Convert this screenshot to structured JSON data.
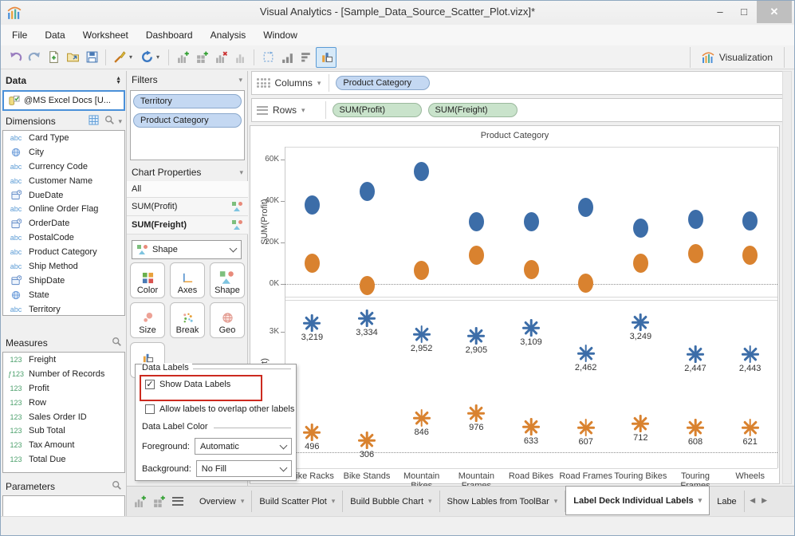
{
  "window": {
    "title": "Visual Analytics - [Sample_Data_Source_Scatter_Plot.vizx]*"
  },
  "menu": {
    "items": [
      "File",
      "Data",
      "Worksheet",
      "Dashboard",
      "Analysis",
      "Window"
    ]
  },
  "toolbar": {
    "visualization_label": "Visualization"
  },
  "data_panel": {
    "title": "Data",
    "source": "@MS Excel Docs [U...",
    "dimensions": {
      "title": "Dimensions",
      "items": [
        {
          "type": "abc",
          "label": "Card Type"
        },
        {
          "type": "globe",
          "label": "City"
        },
        {
          "type": "abc",
          "label": "Currency Code"
        },
        {
          "type": "abc",
          "label": "Customer Name"
        },
        {
          "type": "cal",
          "label": "DueDate"
        },
        {
          "type": "abc",
          "label": "Online Order Flag"
        },
        {
          "type": "cal",
          "label": "OrderDate"
        },
        {
          "type": "abc",
          "label": "PostalCode"
        },
        {
          "type": "abc",
          "label": "Product Category"
        },
        {
          "type": "abc",
          "label": "Ship Method"
        },
        {
          "type": "cal",
          "label": "ShipDate"
        },
        {
          "type": "globe",
          "label": "State"
        },
        {
          "type": "abc",
          "label": "Territory"
        }
      ]
    },
    "measures": {
      "title": "Measures",
      "items": [
        {
          "type": "123",
          "label": "Freight"
        },
        {
          "type": "f123",
          "label": "Number of Records"
        },
        {
          "type": "123",
          "label": "Profit"
        },
        {
          "type": "123",
          "label": "Row"
        },
        {
          "type": "123",
          "label": "Sales Order ID"
        },
        {
          "type": "123",
          "label": "Sub Total"
        },
        {
          "type": "123",
          "label": "Tax Amount"
        },
        {
          "type": "123",
          "label": "Total Due"
        }
      ]
    },
    "parameters": {
      "title": "Parameters"
    }
  },
  "filters": {
    "title": "Filters",
    "pills": [
      "Territory",
      "Product Category"
    ]
  },
  "chart_properties": {
    "title": "Chart Properties",
    "rows": [
      "All",
      "SUM(Profit)",
      "SUM(Freight)"
    ],
    "shape_dropdown": "Shape",
    "buttons": [
      "Color",
      "Axes",
      "Shape",
      "Size",
      "Break",
      "Geo",
      "Label"
    ]
  },
  "label_popup": {
    "group1": "Data Labels",
    "show_labels": "Show Data Labels",
    "overlap": "Allow labels to overlap other labels",
    "group2": "Data Label Color",
    "foreground_label": "Foreground:",
    "foreground_value": "Automatic",
    "background_label": "Background:",
    "background_value": "No Fill"
  },
  "shelves": {
    "columns_label": "Columns",
    "columns_pills": [
      "Product Category"
    ],
    "rows_label": "Rows",
    "rows_pills": [
      "SUM(Profit)",
      "SUM(Freight)"
    ]
  },
  "tabs": {
    "items": [
      "Overview",
      "Build Scatter Plot",
      "Build Bubble Chart",
      "Show Lables from ToolBar"
    ],
    "active": "Label Deck Individual Labels",
    "clipped": "Labe"
  },
  "colors": {
    "blue": "#3c6da8",
    "orange": "#d9822f",
    "annotation_red": "#cc2a1f",
    "pill_blue": "#c4d8f2",
    "pill_green": "#c9e3cb"
  },
  "chart_data": {
    "type": "scatter",
    "title": "Product Category",
    "categories": [
      "Bike Racks",
      "Bike Stands",
      "Mountain Bikes",
      "Mountain Frames",
      "Road Bikes",
      "Road Frames",
      "Touring Bikes",
      "Touring Frames",
      "Wheels"
    ],
    "panels": [
      {
        "ylabel": "SUM(Profit)",
        "ylim": [
          -6000,
          66000
        ],
        "yticks": [
          {
            "value": 60000,
            "label": "60K"
          },
          {
            "value": 40000,
            "label": "40K"
          },
          {
            "value": 20000,
            "label": "20K"
          },
          {
            "value": 0,
            "label": "0K"
          }
        ],
        "zero_line": true,
        "series": [
          {
            "name": "profit-blue",
            "marker": "circle",
            "color": "#3c6da8",
            "values": [
              38000,
              44500,
              54000,
              30000,
              30000,
              37000,
              27000,
              31000,
              30500
            ]
          },
          {
            "name": "profit-orange",
            "marker": "circle",
            "color": "#d9822f",
            "values": [
              10000,
              -500,
              6500,
              14000,
              7000,
              500,
              10000,
              14500,
              14000
            ]
          }
        ]
      },
      {
        "ylabel": "SUM(Freight)",
        "ylim": [
          -400,
          3800
        ],
        "yticks": [
          {
            "value": 3000,
            "label": "3K"
          }
        ],
        "zero_line": true,
        "series": [
          {
            "name": "freight-blue",
            "marker": "asterisk",
            "color": "#3c6da8",
            "values": [
              3219,
              3334,
              2952,
              2905,
              3109,
              2462,
              3249,
              2447,
              2443
            ],
            "labels": [
              "3,219",
              "3,334",
              "2,952",
              "2,905",
              "3,109",
              "2,462",
              "3,249",
              "2,447",
              "2,443"
            ]
          },
          {
            "name": "freight-orange",
            "marker": "asterisk",
            "color": "#d9822f",
            "values": [
              496,
              306,
              846,
              976,
              633,
              607,
              712,
              608,
              621
            ],
            "labels": [
              "496",
              "306",
              "846",
              "976",
              "633",
              "607",
              "712",
              "608",
              "621"
            ]
          }
        ]
      }
    ]
  }
}
